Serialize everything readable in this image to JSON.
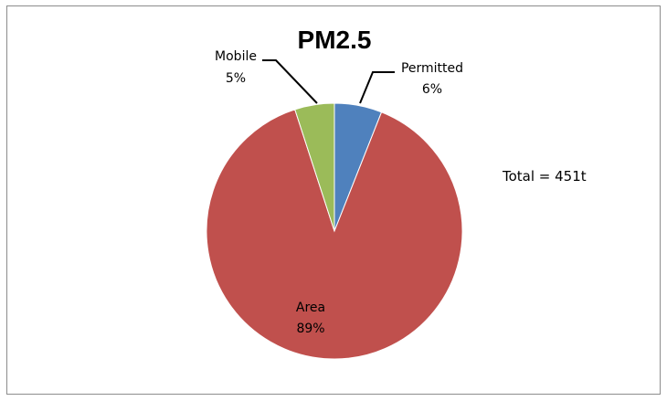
{
  "chart_data": {
    "type": "pie",
    "title": "PM2.5",
    "annotation": "Total = 451t",
    "slices": [
      {
        "name": "Permitted",
        "value": 6,
        "label_value": "6%",
        "color": "#4f81bd"
      },
      {
        "name": "Area",
        "value": 89,
        "label_value": "89%",
        "color": "#c0504d"
      },
      {
        "name": "Mobile",
        "value": 5,
        "label_value": "5%",
        "color": "#9bbb59"
      }
    ],
    "legend": "none"
  }
}
